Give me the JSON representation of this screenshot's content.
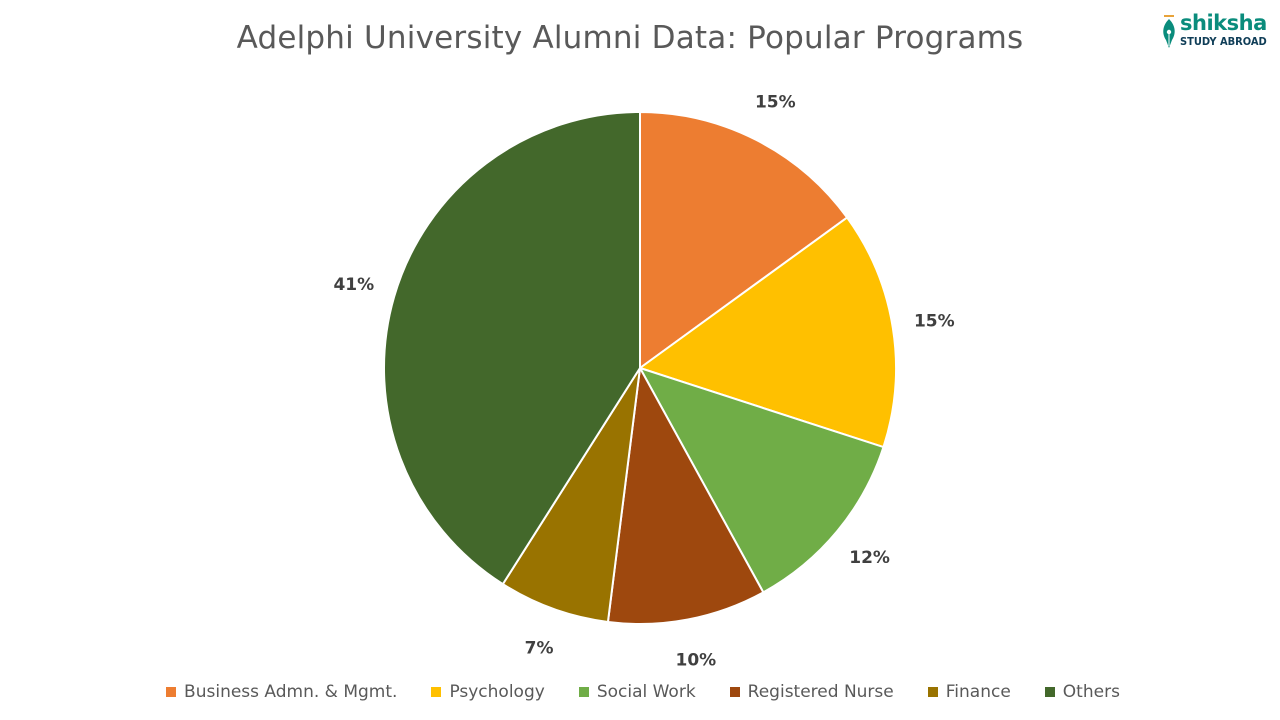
{
  "header": {
    "title": "Adelphi University Alumni Data: Popular Programs"
  },
  "logo": {
    "brand": "shiksha",
    "tagline": "STUDY ABROAD",
    "brand_color": "#0a8c7c",
    "tagline_color": "#0f3d57"
  },
  "chart_data": {
    "type": "pie",
    "title": "Adelphi University Alumni Data: Popular Programs",
    "categories": [
      "Business Admn. & Mgmt.",
      "Psychology",
      "Social Work",
      "Registered Nurse",
      "Finance",
      "Others"
    ],
    "values": [
      15,
      15,
      12,
      10,
      7,
      41
    ],
    "labels": [
      "15%",
      "15%",
      "12%",
      "10%",
      "7%",
      "41%"
    ],
    "colors": [
      "#ed7d31",
      "#ffc000",
      "#70ad47",
      "#9e480e",
      "#997300",
      "#43682b"
    ],
    "legend_position": "bottom",
    "start_angle": "12 o'clock",
    "direction": "clockwise"
  }
}
